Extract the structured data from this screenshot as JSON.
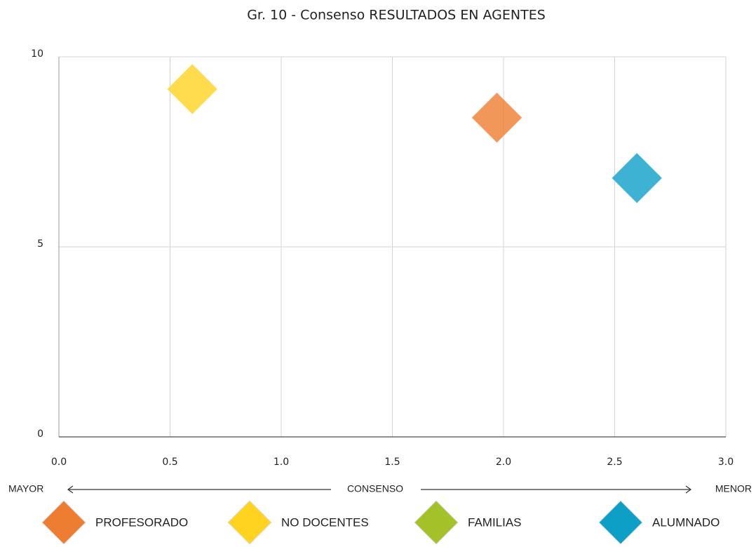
{
  "chart_data": {
    "type": "scatter",
    "title": "Gr. 10 - Consenso RESULTADOS EN AGENTES",
    "annotations": [
      "MAYOR",
      "CONSENSO",
      "MENOR"
    ],
    "xlim": [
      0,
      3
    ],
    "xticks": [
      {
        "value": 0,
        "label": "0.0"
      },
      {
        "value": 0.5,
        "label": "0.5"
      },
      {
        "value": 1,
        "label": "1.0"
      },
      {
        "value": 1.5,
        "label": "1.5"
      },
      {
        "value": 2,
        "label": "2.0"
      },
      {
        "value": 2.5,
        "label": "2.5"
      },
      {
        "value": 3,
        "label": "3.0"
      }
    ],
    "ylim": [
      0,
      10
    ],
    "yticks": [
      0,
      5,
      10
    ],
    "grid": true,
    "legend": "bottom",
    "series": [
      {
        "name": "PROFESORADO",
        "color": "#ed7d31",
        "x": [
          1.97
        ],
        "values": [
          8.4
        ]
      },
      {
        "name": "NO DOCENTES",
        "color": "#ffd320",
        "x": [
          0.6
        ],
        "values": [
          9.15
        ]
      },
      {
        "name": "FAMILIAS",
        "color": "#a5c12a",
        "x": [],
        "values": []
      },
      {
        "name": "ALUMNADO",
        "color": "#0e9fc7",
        "x": [
          2.6
        ],
        "values": [
          6.81
        ]
      }
    ]
  }
}
